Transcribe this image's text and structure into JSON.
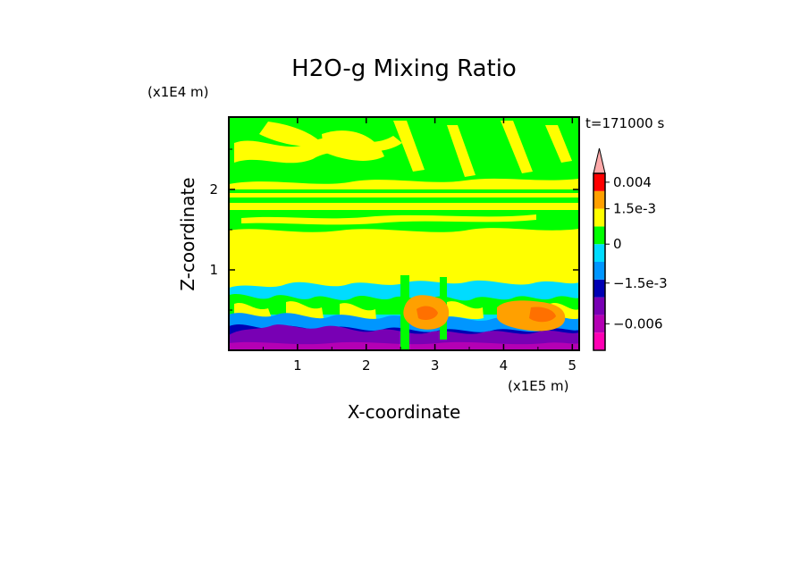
{
  "chart_data": {
    "type": "heatmap",
    "title": "H2O-g Mixing Ratio",
    "xlabel": "X-coordinate",
    "ylabel": "Z-coordinate",
    "x_units": "(x1E5 m)",
    "y_units": "(x1E4 m)",
    "time_label": "t=171000 s",
    "xlim": [
      0,
      5.1
    ],
    "ylim": [
      0,
      2.9
    ],
    "x_ticks": [
      "1",
      "2",
      "3",
      "4",
      "5"
    ],
    "y_ticks": [
      "1",
      "2"
    ],
    "colorbar": {
      "labels": [
        "0.004",
        "1.5e-3",
        "0",
        "−1.5e-3",
        "−0.006"
      ],
      "levels": [
        {
          "color": "#ff00b4",
          "range": "< -0.006"
        },
        {
          "color": "#b400b4",
          "range": "-0.006 to -0.003"
        },
        {
          "color": "#7800b4",
          "range": "-0.003 to -1.5e-3"
        },
        {
          "color": "#0000b4",
          "range": "-1.5e-3 to -1e-3"
        },
        {
          "color": "#0096ff",
          "range": "-1e-3 to -5e-4"
        },
        {
          "color": "#00dcff",
          "range": "-5e-4 to 0"
        },
        {
          "color": "#00ff00",
          "range": "0 to 5e-4"
        },
        {
          "color": "#ffff00",
          "range": "5e-4 to 1e-3"
        },
        {
          "color": "#ffa000",
          "range": "1e-3 to 1.5e-3"
        },
        {
          "color": "#ff0000",
          "range": "1.5e-3 to 0.004"
        },
        {
          "color": "#ffaaaa",
          "range": "> 0.004"
        }
      ]
    },
    "field_summary": [
      {
        "z_range": [
          0,
          0.25
        ],
        "dominant": "purple / blue (negative)"
      },
      {
        "z_range": [
          0.25,
          0.8
        ],
        "dominant": "mixed cyan, blue, green, yellow; orange at x≈2.7-3.2 and x≈4.0-4.9"
      },
      {
        "z_range": [
          0.8,
          1.6
        ],
        "dominant": "yellow (0.5e-3 to 1e-3)"
      },
      {
        "z_range": [
          1.6,
          2.9
        ],
        "dominant": "green and yellow layers"
      }
    ]
  }
}
